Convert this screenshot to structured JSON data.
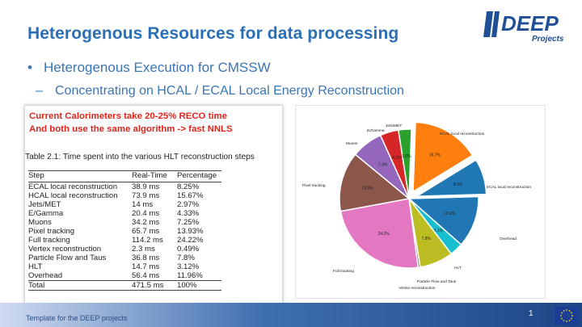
{
  "title": "Heterogenous Resources for data processing",
  "logo": {
    "brand": "DEEP",
    "subtitle": "Projects"
  },
  "bullets": {
    "level1": "Heterogenous Execution for CMSSW",
    "level2": "Concentrating on HCAL / ECAL Local Energy Reconstruction"
  },
  "note": {
    "line1": "Current Calorimeters take 20-25% RECO time",
    "line2": "And both use the same algorithm -> fast NNLS",
    "color": "#e2231a"
  },
  "table": {
    "caption": "Table 2.1: Time spent into the various HLT reconstruction steps",
    "headers": [
      "Step",
      "Real-Time",
      "Percentage"
    ],
    "rows": [
      [
        "ECAL local reconstruction",
        "38.9 ms",
        "8.25%"
      ],
      [
        "HCAL local reconstruction",
        "73.9 ms",
        "15.67%"
      ],
      [
        "Jets/MET",
        "14 ms",
        "2.97%"
      ],
      [
        "E/Gamma",
        "20.4 ms",
        "4.33%"
      ],
      [
        "Muons",
        "34.2 ms",
        "7.25%"
      ],
      [
        "Pixel tracking",
        "65.7 ms",
        "13.93%"
      ],
      [
        "Full tracking",
        "114.2 ms",
        "24.22%"
      ],
      [
        "Vertex reconstruction",
        "2.3 ms",
        "0.49%"
      ],
      [
        "Particle Flow and Taus",
        "36.8 ms",
        "7.8%"
      ],
      [
        "HLT",
        "14.7 ms",
        "3.12%"
      ],
      [
        "Overhead",
        "56.4 ms",
        "11.96%"
      ],
      [
        "Total",
        "471.5 ms",
        "100%"
      ]
    ]
  },
  "chart_data": {
    "type": "pie",
    "title": "",
    "slices": [
      {
        "label": "HCAL local reconstruction",
        "value": 15.7,
        "pct_label": "15.7%",
        "color": "#ff7f0e",
        "exploded": true
      },
      {
        "label": "ECAL local reconstruction",
        "value": 8.3,
        "pct_label": "8.3%",
        "color": "#1f77b4",
        "exploded": true
      },
      {
        "label": "Overhead",
        "value": 12.0,
        "pct_label": "12.0%",
        "color": "#2077b4",
        "exploded": false
      },
      {
        "label": "HLT",
        "value": 3.1,
        "pct_label": "3.1%",
        "color": "#17becf",
        "exploded": false
      },
      {
        "label": "Particle Flow and Taus",
        "value": 7.8,
        "pct_label": "7.8%",
        "color": "#bcbd22",
        "exploded": false
      },
      {
        "label": "Vertex reconstruction",
        "value": 0.5,
        "pct_label": "",
        "color": "#7f7f7f",
        "exploded": false
      },
      {
        "label": "Full tracking",
        "value": 24.2,
        "pct_label": "24.2%",
        "color": "#e377c2",
        "exploded": false
      },
      {
        "label": "Pixel tracking",
        "value": 13.9,
        "pct_label": "13.9%",
        "color": "#8c564b",
        "exploded": false
      },
      {
        "label": "Muons",
        "value": 7.3,
        "pct_label": "7.3%",
        "color": "#9467bd",
        "exploded": false
      },
      {
        "label": "E/Gamma",
        "value": 4.3,
        "pct_label": "4.3%",
        "color": "#d62728",
        "exploded": false
      },
      {
        "label": "Jets/MET",
        "value": 3.0,
        "pct_label": "3.0%",
        "color": "#2ca02c",
        "exploded": false
      }
    ]
  },
  "footer": {
    "template_text": "Template for the DEEP projects",
    "page_number": "1"
  }
}
